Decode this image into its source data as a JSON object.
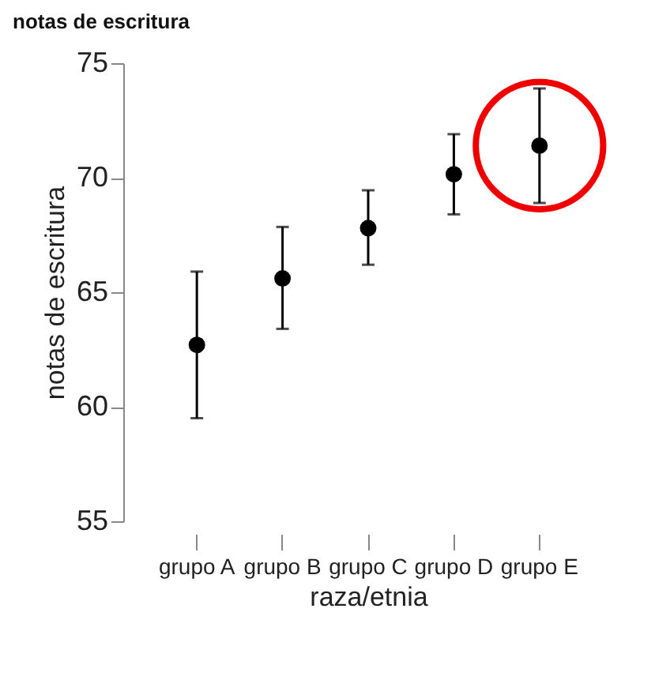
{
  "chart_data": {
    "type": "scatter",
    "title": "notas de escritura",
    "xlabel": "raza/etnia",
    "ylabel": "notas de escritura",
    "categories": [
      "grupo A",
      "grupo B",
      "grupo C",
      "grupo D",
      "grupo E"
    ],
    "series": [
      {
        "color": "#000000",
        "values": [
          62.7,
          65.6,
          67.8,
          70.15,
          71.4
        ],
        "errors": [
          [
            59.5,
            65.9
          ],
          [
            63.4,
            67.85
          ],
          [
            66.2,
            69.45
          ],
          [
            68.4,
            71.9
          ],
          [
            68.9,
            73.9
          ]
        ]
      }
    ],
    "ylim": [
      55,
      75
    ],
    "yticks": [
      55,
      60,
      65,
      70,
      75
    ],
    "grid": false,
    "marker": "circle"
  }
}
